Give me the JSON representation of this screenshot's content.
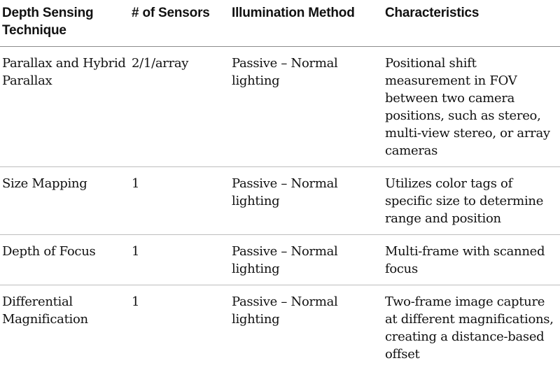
{
  "table": {
    "headers": [
      "Depth Sensing Technique",
      "# of Sensors",
      "Illumination Method",
      "Characteristics"
    ],
    "rows": [
      {
        "technique": "Parallax and Hybrid Parallax",
        "sensors": "2/1/array",
        "illumination": "Passive – Normal lighting",
        "characteristics": "Positional shift measurement in FOV between two camera positions, such as stereo, multi-view stereo, or array cameras"
      },
      {
        "technique": "Size Mapping",
        "sensors": "1",
        "illumination": "Passive – Normal lighting",
        "characteristics": "Utilizes color tags of specific size to determine range and position"
      },
      {
        "technique": "Depth of Focus",
        "sensors": "1",
        "illumination": "Passive – Normal lighting",
        "characteristics": "Multi-frame with scanned focus"
      },
      {
        "technique": "Differential Magnification",
        "sensors": "1",
        "illumination": "Passive – Normal lighting",
        "characteristics": "Two-frame image capture at different magnifications, creating a distance-based offset"
      }
    ]
  }
}
